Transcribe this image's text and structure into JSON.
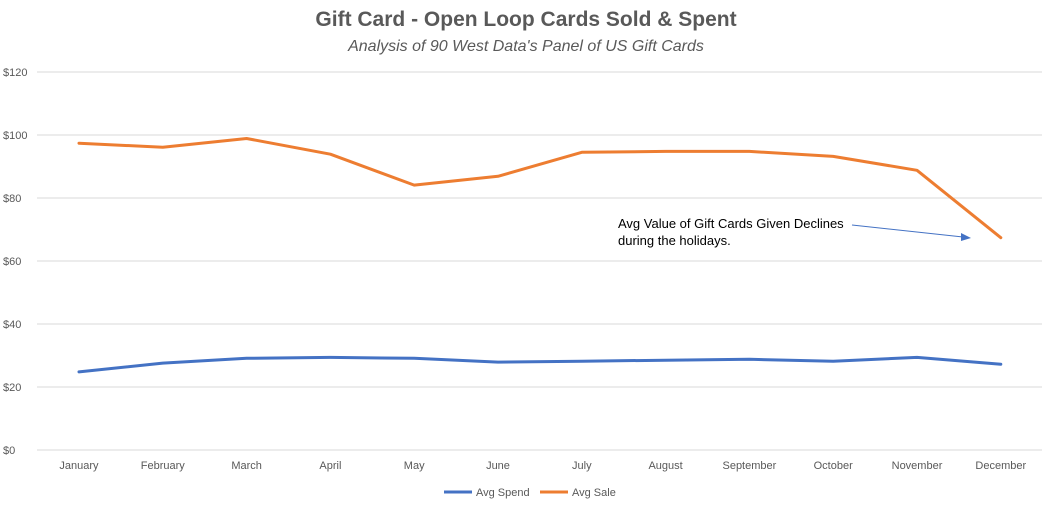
{
  "colors": {
    "avg_spend": "#4472C4",
    "avg_sale": "#ED7D31",
    "grid": "#D9D9D9",
    "text": "#595959",
    "annotation_arrow": "#4472C4"
  },
  "chart_data": {
    "type": "line",
    "title": "Gift Card - Open Loop Cards Sold & Spent",
    "subtitle": "Analysis of 90 West Data's Panel of US Gift Cards",
    "xlabel": "",
    "ylabel": "",
    "grid": true,
    "legend_position": "bottom",
    "ylim": [
      0,
      120
    ],
    "y_ticks": [
      0,
      20,
      40,
      60,
      80,
      100,
      120
    ],
    "y_tick_labels": [
      "$0",
      "$20",
      "$40",
      "$60",
      "$80",
      "$100",
      "$120"
    ],
    "categories": [
      "January",
      "February",
      "March",
      "April",
      "May",
      "June",
      "July",
      "August",
      "September",
      "October",
      "November",
      "December"
    ],
    "series": [
      {
        "name": "Avg Spend",
        "color": "#4472C4",
        "values": [
          24.8,
          27.6,
          29.1,
          29.4,
          29.1,
          27.9,
          28.2,
          28.5,
          28.8,
          28.2,
          29.4,
          27.2
        ]
      },
      {
        "name": "Avg Sale",
        "color": "#ED7D31",
        "values": [
          97.4,
          96.1,
          98.9,
          93.9,
          84.1,
          86.9,
          94.5,
          94.8,
          94.8,
          93.2,
          88.8,
          67.4
        ]
      }
    ],
    "annotation": {
      "lines": [
        "Avg Value of Gift Cards Given Declines",
        "during the holidays."
      ],
      "target_category": "December"
    }
  }
}
